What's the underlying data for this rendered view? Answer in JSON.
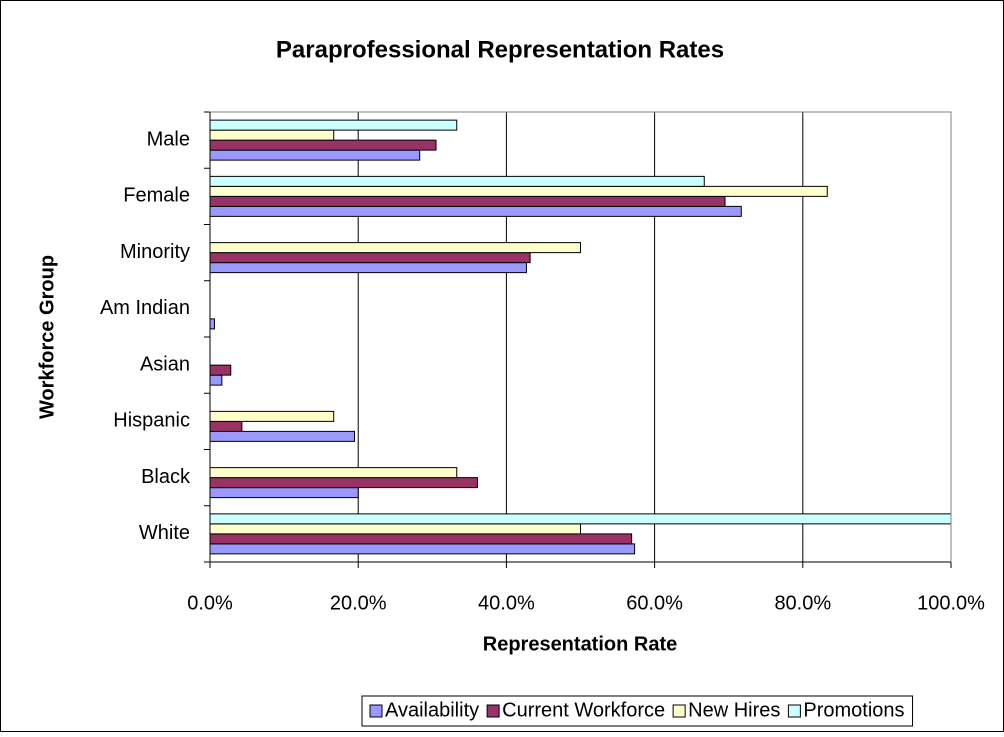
{
  "chart_data": {
    "type": "hbar",
    "title": "Paraprofessional Representation Rates",
    "x_label": "Representation Rate",
    "y_label": "Workforce Group",
    "categories": [
      "Male",
      "Female",
      "Minority",
      "Am Indian",
      "Asian",
      "Hispanic",
      "Black",
      "White"
    ],
    "series": [
      {
        "name": "Availability",
        "color": "#9999ff",
        "values": [
          28.3,
          71.7,
          42.7,
          0.6,
          1.6,
          19.5,
          20.0,
          57.3
        ]
      },
      {
        "name": "Current Workforce",
        "color": "#993366",
        "values": [
          30.5,
          69.5,
          43.2,
          0,
          2.8,
          4.3,
          36.1,
          56.9
        ]
      },
      {
        "name": "New Hires",
        "color": "#ffffcc",
        "values": [
          16.7,
          83.3,
          50.0,
          0,
          0,
          16.7,
          33.3,
          50.0
        ]
      },
      {
        "name": "Promotions",
        "color": "#ccffff",
        "values": [
          33.3,
          66.7,
          0,
          0,
          0,
          0,
          0,
          100.0
        ]
      }
    ],
    "xlim": [
      0,
      100
    ],
    "xticks": [
      {
        "value": 0,
        "label": "0.0%"
      },
      {
        "value": 20,
        "label": "20.0%"
      },
      {
        "value": 40,
        "label": "40.0%"
      },
      {
        "value": 60,
        "label": "60.0%"
      },
      {
        "value": 80,
        "label": "80.0%"
      },
      {
        "value": 100,
        "label": "100.0%"
      }
    ],
    "grid": true,
    "legend": "bottom"
  }
}
